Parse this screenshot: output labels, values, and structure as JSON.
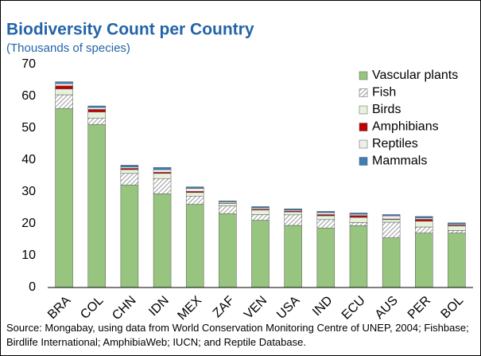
{
  "chart_data": {
    "type": "stacked_bar",
    "title": "Biodiversity Count per Country",
    "subtitle": "(Thousands of species)",
    "source": "Source: Mongabay, using data from World Conservation Monitoring Centre of UNEP, 2004; Fishbase; Birdlife International; AmphibiaWeb; IUCN; and Reptile Database.",
    "categories": [
      "BRA",
      "COL",
      "CHN",
      "IDN",
      "MEX",
      "ZAF",
      "VEN",
      "USA",
      "IND",
      "ECU",
      "AUS",
      "PER",
      "BOL"
    ],
    "series": [
      {
        "name": "Vascular plants",
        "color": "#97c47e",
        "values": [
          56.2,
          51.2,
          32.2,
          29.4,
          26.1,
          23.2,
          21.1,
          19.5,
          18.7,
          19.4,
          15.6,
          17.1,
          17.1
        ]
      },
      {
        "name": "Fish",
        "color": "#7f7f7f",
        "hatch": true,
        "values": [
          4.3,
          2.0,
          3.6,
          4.8,
          2.6,
          2.4,
          1.8,
          3.3,
          2.6,
          1.0,
          4.9,
          1.9,
          0.8
        ]
      },
      {
        "name": "Birds",
        "color": "#e6f2dc",
        "values": [
          1.8,
          1.9,
          1.2,
          1.6,
          1.1,
          0.8,
          1.4,
          0.9,
          1.2,
          1.6,
          0.8,
          1.8,
          1.4
        ]
      },
      {
        "name": "Amphibians",
        "color": "#c00000",
        "values": [
          1.0,
          0.8,
          0.4,
          0.4,
          0.4,
          0.1,
          0.3,
          0.3,
          0.4,
          0.6,
          0.2,
          0.6,
          0.3
        ]
      },
      {
        "name": "Reptiles",
        "color": "#eeeeee",
        "values": [
          0.7,
          0.6,
          0.4,
          0.8,
          0.9,
          0.4,
          0.4,
          0.3,
          0.6,
          0.4,
          1.0,
          0.4,
          0.3
        ]
      },
      {
        "name": "Mammals",
        "color": "#3d7fb8",
        "values": [
          0.6,
          0.5,
          0.6,
          0.7,
          0.5,
          0.3,
          0.4,
          0.4,
          0.4,
          0.4,
          0.4,
          0.5,
          0.4
        ]
      }
    ],
    "ylim": [
      0,
      70
    ],
    "yticks": [
      0,
      10,
      20,
      30,
      40,
      50,
      60,
      70
    ],
    "legend": "upper right"
  }
}
